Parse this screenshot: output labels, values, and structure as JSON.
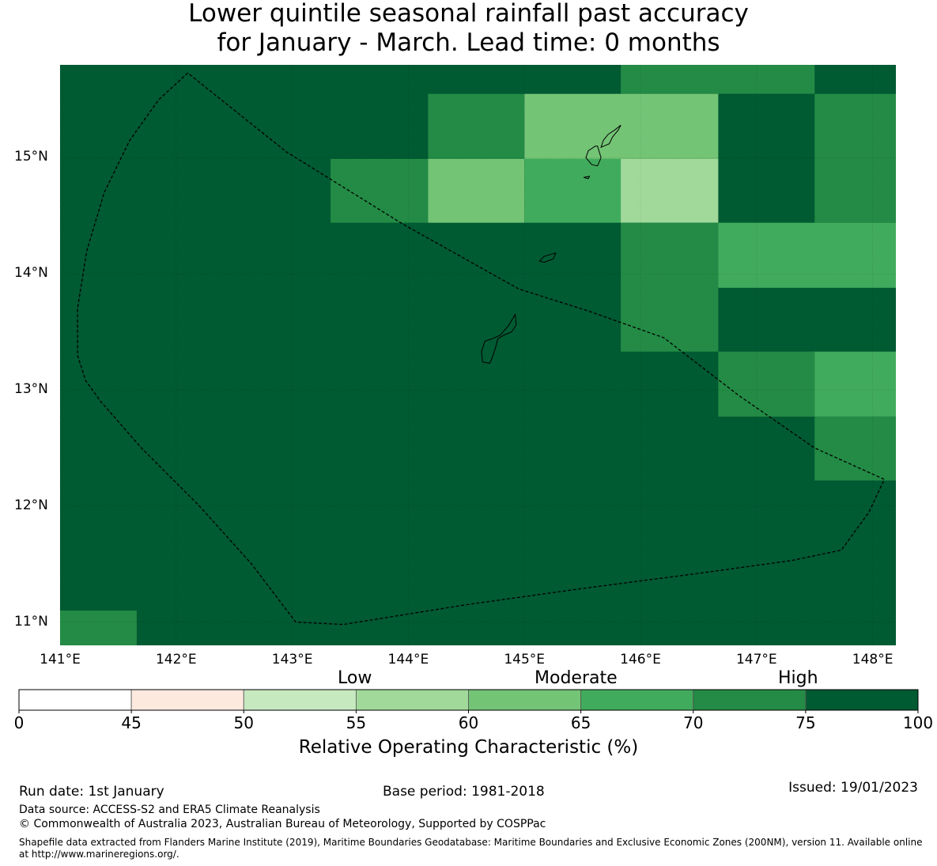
{
  "title": {
    "line1": "Lower quintile seasonal rainfall past accuracy",
    "line2": "for January - March. Lead time: 0 months"
  },
  "map": {
    "lon_range": [
      141.0,
      148.2
    ],
    "lat_range": [
      10.8,
      15.8
    ],
    "lat_ticks": [
      {
        "value": 15,
        "label": "15°N"
      },
      {
        "value": 14,
        "label": "14°N"
      },
      {
        "value": 13,
        "label": "13°N"
      },
      {
        "value": 12,
        "label": "12°N"
      },
      {
        "value": 11,
        "label": "11°N"
      }
    ],
    "lon_ticks": [
      {
        "value": 141,
        "label": "141°E"
      },
      {
        "value": 142,
        "label": "142°E"
      },
      {
        "value": 143,
        "label": "143°E"
      },
      {
        "value": 144,
        "label": "144°E"
      },
      {
        "value": 145,
        "label": "145°E"
      },
      {
        "value": 146,
        "label": "146°E"
      },
      {
        "value": 147,
        "label": "147°E"
      },
      {
        "value": 148,
        "label": "148°E"
      }
    ],
    "background_color": "#005a32",
    "cells": [
      {
        "lon": [
          145.83,
          147.5
        ],
        "lat": [
          15.55,
          15.8
        ],
        "color": "#238b45"
      },
      {
        "lon": [
          146.67,
          147.5
        ],
        "lat": [
          14.44,
          15.55
        ],
        "color": "#005a32"
      },
      {
        "lon": [
          147.5,
          148.2
        ],
        "lat": [
          14.44,
          15.55
        ],
        "color": "#238b45"
      },
      {
        "lon": [
          144.17,
          145.0
        ],
        "lat": [
          14.99,
          15.55
        ],
        "color": "#238b45"
      },
      {
        "lon": [
          145.0,
          146.67
        ],
        "lat": [
          14.99,
          15.55
        ],
        "color": "#74c476"
      },
      {
        "lon": [
          143.33,
          144.17
        ],
        "lat": [
          14.44,
          14.99
        ],
        "color": "#238b45"
      },
      {
        "lon": [
          144.17,
          145.0
        ],
        "lat": [
          14.44,
          14.99
        ],
        "color": "#74c476"
      },
      {
        "lon": [
          145.0,
          145.83
        ],
        "lat": [
          14.44,
          14.99
        ],
        "color": "#41ab5d"
      },
      {
        "lon": [
          145.83,
          146.67
        ],
        "lat": [
          14.44,
          14.99
        ],
        "color": "#a1d99b"
      },
      {
        "lon": [
          145.83,
          146.67
        ],
        "lat": [
          13.33,
          14.44
        ],
        "color": "#238b45"
      },
      {
        "lon": [
          146.67,
          148.2
        ],
        "lat": [
          13.88,
          14.44
        ],
        "color": "#41ab5d"
      },
      {
        "lon": [
          146.67,
          147.5
        ],
        "lat": [
          12.77,
          13.33
        ],
        "color": "#238b45"
      },
      {
        "lon": [
          147.5,
          148.2
        ],
        "lat": [
          12.77,
          13.33
        ],
        "color": "#41ab5d"
      },
      {
        "lon": [
          147.5,
          148.2
        ],
        "lat": [
          12.22,
          12.77
        ],
        "color": "#238b45"
      },
      {
        "lon": [
          141.0,
          141.66
        ],
        "lat": [
          10.8,
          11.1
        ],
        "color": "#238b45"
      }
    ],
    "eez_boundary": [
      [
        142.1,
        15.73
      ],
      [
        141.85,
        15.5
      ],
      [
        141.6,
        15.15
      ],
      [
        141.38,
        14.7
      ],
      [
        141.23,
        14.2
      ],
      [
        141.15,
        13.7
      ],
      [
        141.15,
        13.3
      ],
      [
        141.22,
        13.08
      ],
      [
        141.35,
        12.9
      ],
      [
        141.7,
        12.5
      ],
      [
        142.2,
        12.0
      ],
      [
        142.65,
        11.5
      ],
      [
        143.03,
        11.0
      ],
      [
        143.44,
        10.98
      ],
      [
        144.5,
        11.15
      ],
      [
        145.5,
        11.29
      ],
      [
        146.5,
        11.42
      ],
      [
        147.3,
        11.53
      ],
      [
        147.73,
        11.62
      ],
      [
        147.97,
        11.95
      ],
      [
        148.1,
        12.23
      ],
      [
        147.5,
        12.5
      ],
      [
        146.85,
        12.95
      ],
      [
        146.2,
        13.45
      ],
      [
        145.55,
        13.68
      ],
      [
        144.95,
        13.87
      ],
      [
        144.45,
        14.15
      ],
      [
        143.95,
        14.43
      ],
      [
        142.95,
        15.05
      ],
      [
        142.1,
        15.73
      ]
    ],
    "islands": [
      [
        [
          144.92,
          13.65
        ],
        [
          144.86,
          13.55
        ],
        [
          144.79,
          13.47
        ],
        [
          144.72,
          13.44
        ],
        [
          144.66,
          13.42
        ],
        [
          144.63,
          13.33
        ],
        [
          144.64,
          13.24
        ],
        [
          144.7,
          13.23
        ],
        [
          144.72,
          13.27
        ],
        [
          144.75,
          13.36
        ],
        [
          144.77,
          13.44
        ],
        [
          144.82,
          13.47
        ],
        [
          144.89,
          13.5
        ],
        [
          144.93,
          13.56
        ],
        [
          144.92,
          13.65
        ]
      ],
      [
        [
          145.27,
          14.18
        ],
        [
          145.17,
          14.15
        ],
        [
          145.13,
          14.11
        ],
        [
          145.17,
          14.1
        ],
        [
          145.25,
          14.13
        ],
        [
          145.27,
          14.18
        ]
      ],
      [
        [
          145.61,
          15.1
        ],
        [
          145.55,
          15.06
        ],
        [
          145.53,
          15.0
        ],
        [
          145.58,
          14.94
        ],
        [
          145.63,
          14.93
        ],
        [
          145.66,
          15.0
        ],
        [
          145.63,
          15.1
        ],
        [
          145.61,
          15.1
        ]
      ],
      [
        [
          145.83,
          15.28
        ],
        [
          145.78,
          15.24
        ],
        [
          145.72,
          15.2
        ],
        [
          145.68,
          15.15
        ],
        [
          145.66,
          15.09
        ],
        [
          145.73,
          15.12
        ],
        [
          145.76,
          15.18
        ],
        [
          145.81,
          15.24
        ],
        [
          145.83,
          15.28
        ]
      ],
      [
        [
          145.56,
          14.84
        ],
        [
          145.51,
          14.83
        ],
        [
          145.55,
          14.82
        ],
        [
          145.56,
          14.84
        ]
      ]
    ]
  },
  "bands": {
    "low": "Low",
    "moderate": "Moderate",
    "high": "High"
  },
  "colorbar": {
    "ticks": [
      "0",
      "45",
      "50",
      "55",
      "60",
      "65",
      "70",
      "75",
      "100"
    ],
    "colors": [
      "#ffffff",
      "#fee9df",
      "#c7e9c0",
      "#a1d99b",
      "#74c476",
      "#41ab5d",
      "#238b45",
      "#005a32"
    ],
    "title": "Relative Operating Characteristic (%)"
  },
  "footer": {
    "run_date": "Run date: 1st January",
    "base_period": "Base period: 1981-2018",
    "issued": "Issued: 19/01/2023",
    "data_source": "Data source: ACCESS-S2 and ERA5 Climate Reanalysis",
    "copyright": "© Commonwealth of Australia 2023, Australian Bureau of Meteorology, Supported by COSPPac",
    "shapefile": "Shapefile data extracted from Flanders Marine Institute (2019), Maritime Boundaries Geodatabase: Maritime Boundaries and Exclusive Economic Zones (200NM), version 11. Available online at http://www.marineregions.org/."
  }
}
